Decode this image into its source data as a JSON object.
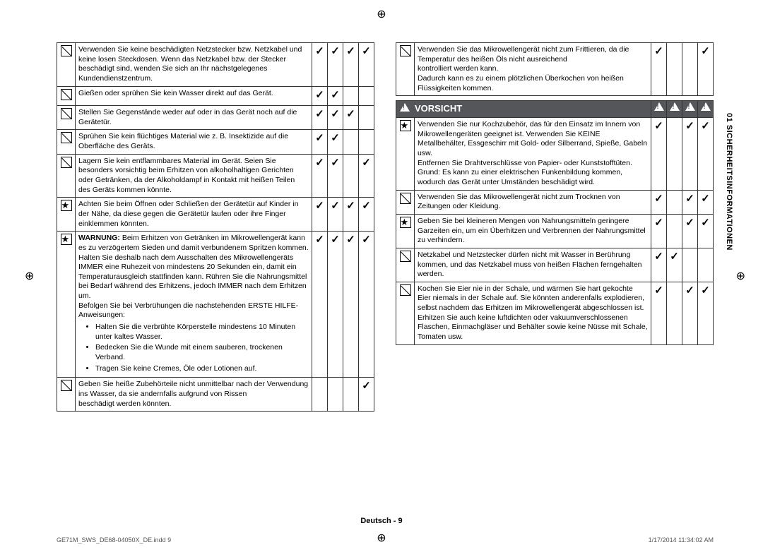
{
  "sideLabel": "01 SICHERHEITSINFORMATIONEN",
  "footer": {
    "center": "Deutsch - 9",
    "left": "GE71M_SWS_DE68-04050X_DE.indd   9",
    "right": "1/17/2014   11:34:02 AM"
  },
  "vorsichtHeader": "VORSICHT",
  "leftRows": [
    {
      "icon": "slash",
      "text": "Verwenden Sie keine beschädigten Netzstecker bzw. Netzkabel und keine losen Steckdosen. Wenn das Netzkabel bzw. der Stecker beschädigt sind, wenden Sie sich an Ihr nächstgelegenes Kundendienstzentrum.",
      "checks": [
        true,
        true,
        true,
        true
      ]
    },
    {
      "icon": "slash",
      "text": "Gießen oder sprühen Sie kein Wasser direkt auf das Gerät.",
      "checks": [
        true,
        true,
        false,
        false
      ]
    },
    {
      "icon": "slash",
      "text": "Stellen Sie Gegenstände weder auf oder in das Gerät noch auf die Gerätetür.",
      "checks": [
        true,
        true,
        true,
        false
      ]
    },
    {
      "icon": "slash",
      "text": "Sprühen Sie kein flüchtiges Material wie z. B. Insektizide auf die Oberfläche des Geräts.",
      "checks": [
        true,
        true,
        false,
        false
      ]
    },
    {
      "icon": "slash",
      "text": "Lagern Sie kein entflammbares Material im Gerät. Seien Sie besonders vorsichtig beim Erhitzen von alkoholhaltigen Gerichten oder Getränken, da der Alkoholdampf in Kontakt mit heißen Teilen des Geräts kommen könnte.",
      "checks": [
        true,
        true,
        false,
        true
      ]
    },
    {
      "icon": "star",
      "text": "Achten Sie beim Öffnen oder Schließen der Gerätetür auf Kinder in der Nähe, da diese gegen die Gerätetür laufen oder ihre Finger einklemmen könnten.",
      "checks": [
        true,
        true,
        true,
        true
      ]
    },
    {
      "icon": "star",
      "html": true,
      "bold": "WARNUNG:",
      "text1": " Beim Erhitzen von Getränken im Mikrowellengerät kann es zu verzögertem Sieden und damit verbundenem Spritzen kommen. Halten Sie deshalb nach dem Ausschalten des Mikrowellengeräts IMMER eine Ruhezeit von mindestens 20 Sekunden ein, damit ein Temperaturausgleich stattfinden kann. Rühren Sie die Nahrungsmittel bei Bedarf während des Erhitzens, jedoch IMMER nach dem Erhitzen um.",
      "text2": "Befolgen Sie bei Verbrühungen die nachstehenden ERSTE HILFE-Anweisungen:",
      "bullets": [
        "Halten Sie die verbrühte Körperstelle mindestens 10 Minuten unter kaltes Wasser.",
        "Bedecken Sie die Wunde mit einem sauberen, trockenen Verband.",
        "Tragen Sie keine Cremes, Öle oder Lotionen auf."
      ],
      "checks": [
        true,
        true,
        true,
        true
      ]
    },
    {
      "icon": "slash",
      "text": "Geben Sie heiße Zubehörteile nicht unmittelbar nach der Verwendung ins Wasser, da sie andernfalls aufgrund von Rissen\nbeschädigt werden könnten.",
      "checks": [
        false,
        false,
        false,
        true
      ]
    }
  ],
  "rightTopRows": [
    {
      "icon": "slash",
      "text": "Verwenden Sie das Mikrowellengerät nicht zum Frittieren, da die Temperatur des heißen Öls nicht ausreichend\nkontrolliert werden kann.\nDadurch kann es zu einem plötzlichen Überkochen von heißen\nFlüssigkeiten kommen.",
      "checks": [
        true,
        false,
        false,
        true
      ]
    }
  ],
  "vorsichtRows": [
    {
      "icon": "star",
      "text": "Verwenden Sie nur Kochzubehör, das für den Einsatz im Innern von Mikrowellengeräten geeignet ist. Verwenden Sie KEINE Metallbehälter, Essgeschirr mit Gold- oder Silberrand, Spieße, Gabeln usw.\nEntfernen Sie Drahtverschlüsse von Papier- oder Kunststofftüten.\nGrund: Es kann zu einer elektrischen Funkenbildung kommen, wodurch das Gerät unter Umständen beschädigt wird.",
      "checks": [
        true,
        false,
        true,
        true
      ]
    },
    {
      "icon": "slash",
      "text": "Verwenden Sie das Mikrowellengerät nicht zum Trocknen von Zeitungen oder Kleidung.",
      "checks": [
        true,
        false,
        true,
        true
      ]
    },
    {
      "icon": "star",
      "text": "Geben Sie bei kleineren Mengen von Nahrungsmitteln geringere Garzeiten ein, um ein Überhitzen und Verbrennen der Nahrungsmittel zu verhindern.",
      "checks": [
        true,
        false,
        true,
        true
      ]
    },
    {
      "icon": "slash",
      "text": "Netzkabel und Netzstecker dürfen nicht mit Wasser in Berührung kommen, und das Netzkabel muss von heißen Flächen ferngehalten werden.",
      "checks": [
        true,
        true,
        false,
        false
      ]
    },
    {
      "icon": "slash",
      "text": "Kochen Sie Eier nie in der Schale, und wärmen Sie hart gekochte Eier niemals in der Schale auf. Sie könnten anderenfalls explodieren, selbst nachdem das Erhitzen im Mikrowellengerät abgeschlossen ist. Erhitzen Sie auch keine luftdichten oder vakuumverschlossenen Flaschen, Einmachgläser und Behälter sowie keine Nüsse mit Schale, Tomaten usw.",
      "checks": [
        true,
        false,
        true,
        true
      ]
    }
  ]
}
